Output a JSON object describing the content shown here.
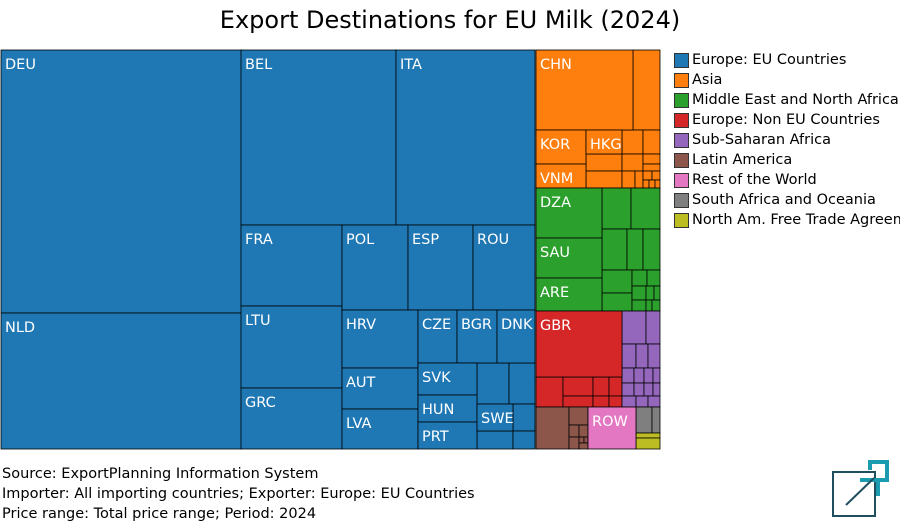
{
  "chart_data": {
    "type": "treemap",
    "title": "Export Destinations for EU Milk (2024)",
    "legend": {
      "placement": "right",
      "entries": [
        {
          "name": "Europe: EU Countries",
          "color": "#1f77b4"
        },
        {
          "name": "Asia",
          "color": "#ff7f0e"
        },
        {
          "name": "Middle East and North Africa",
          "color": "#2ca02c"
        },
        {
          "name": "Europe: Non EU Countries",
          "color": "#d62728"
        },
        {
          "name": "Sub-Saharan Africa",
          "color": "#9467bd"
        },
        {
          "name": "Latin America",
          "color": "#8c564b"
        },
        {
          "name": "Rest of the World",
          "color": "#e377c2"
        },
        {
          "name": "South Africa and Oceania",
          "color": "#7f7f7f"
        },
        {
          "name": "North Am. Free Trade Agreement",
          "color": "#bcbd22"
        }
      ]
    },
    "labeled_tiles": [
      {
        "label": "DEU",
        "region": "Europe: EU Countries",
        "share": 16.2
      },
      {
        "label": "NLD",
        "region": "Europe: EU Countries",
        "share": 8.4
      },
      {
        "label": "BEL",
        "region": "Europe: EU Countries",
        "share": 6.4
      },
      {
        "label": "ITA",
        "region": "Europe: EU Countries",
        "share": 6.8
      },
      {
        "label": "FRA",
        "region": "Europe: EU Countries",
        "share": 2.7
      },
      {
        "label": "LTU",
        "region": "Europe: EU Countries",
        "share": 2.6
      },
      {
        "label": "GRC",
        "region": "Europe: EU Countries",
        "share": 1.9
      },
      {
        "label": "POL",
        "region": "Europe: EU Countries",
        "share": 1.6
      },
      {
        "label": "ESP",
        "region": "Europe: EU Countries",
        "share": 1.6
      },
      {
        "label": "ROU",
        "region": "Europe: EU Countries",
        "share": 1.5
      },
      {
        "label": "HRV",
        "region": "Europe: EU Countries",
        "share": 1.1
      },
      {
        "label": "AUT",
        "region": "Europe: EU Countries",
        "share": 0.8
      },
      {
        "label": "LVA",
        "region": "Europe: EU Countries",
        "share": 0.8
      },
      {
        "label": "CZE",
        "region": "Europe: EU Countries",
        "share": 0.6
      },
      {
        "label": "BGR",
        "region": "Europe: EU Countries",
        "share": 0.6
      },
      {
        "label": "DNK",
        "region": "Europe: EU Countries",
        "share": 0.6
      },
      {
        "label": "SVK",
        "region": "Europe: EU Countries",
        "share": 0.5
      },
      {
        "label": "HUN",
        "region": "Europe: EU Countries",
        "share": 0.4
      },
      {
        "label": "PRT",
        "region": "Europe: EU Countries",
        "share": 0.4
      },
      {
        "label": "SWE",
        "region": "Europe: EU Countries",
        "share": 0.3
      },
      {
        "label": "CHN",
        "region": "Asia",
        "share": 3.3
      },
      {
        "label": "KOR",
        "region": "Asia",
        "share": 0.8
      },
      {
        "label": "HKG",
        "region": "Asia",
        "share": 0.5
      },
      {
        "label": "VNM",
        "region": "Asia",
        "share": 0.6
      },
      {
        "label": "DZA",
        "region": "Middle East and North Africa",
        "share": 1.0
      },
      {
        "label": "SAU",
        "region": "Middle East and North Africa",
        "share": 1.0
      },
      {
        "label": "ARE",
        "region": "Middle East and North Africa",
        "share": 0.8
      },
      {
        "label": "GBR",
        "region": "Europe: Non EU Countries",
        "share": 2.3
      },
      {
        "label": "ROW",
        "region": "Rest of the World",
        "share": 0.6
      }
    ]
  },
  "footer": {
    "line1": "Source: ExportPlanning Information System",
    "line2": "Importer: All importing countries; Exporter: Europe: EU Countries",
    "line3": "Price range: Total price range; Period: 2024"
  }
}
